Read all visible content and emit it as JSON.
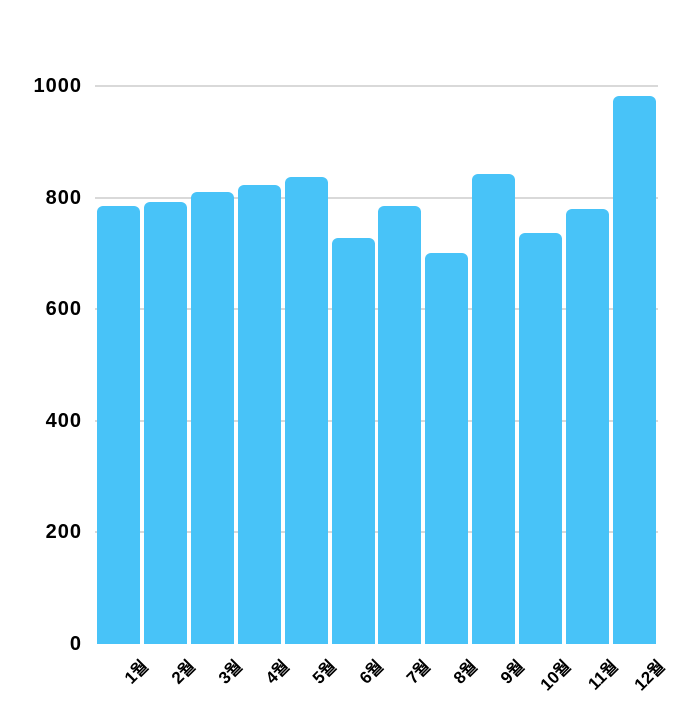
{
  "colors": {
    "background": "#ffffff",
    "bar": "#48c3f8",
    "gridline": "#d9d9d9",
    "tick_text": "#000000"
  },
  "chart_data": {
    "type": "bar",
    "title": "",
    "xlabel": "",
    "ylabel": "",
    "categories": [
      "1월",
      "2월",
      "3월",
      "4월",
      "5월",
      "6월",
      "7월",
      "8월",
      "9월",
      "10월",
      "11월",
      "12월"
    ],
    "values": [
      785,
      792,
      810,
      823,
      837,
      728,
      785,
      701,
      842,
      737,
      780,
      982
    ],
    "ylim": [
      0,
      1000
    ],
    "yticks": [
      0,
      200,
      400,
      600,
      800,
      1000
    ],
    "grid": true,
    "gridlines_at": [
      200,
      400,
      600,
      800,
      1000
    ],
    "legend_position": "none",
    "x_label_rotation_deg": -45,
    "bar_color": "#48c3f8",
    "gridline_color": "#d9d9d9"
  }
}
